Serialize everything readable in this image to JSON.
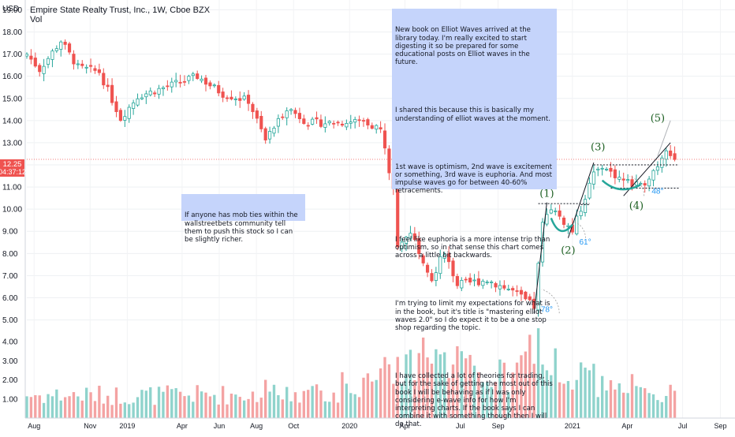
{
  "header": {
    "currency": "USD",
    "title": "Empire State Realty Trust, Inc., 1W, Cboe BZX",
    "volume_label": "Vol"
  },
  "price_tag": {
    "price": "12.25",
    "countdown": "04:37:12"
  },
  "notes": {
    "main": [
      "New book on Elliot Waves arrived at the library today. I'm really excited to start digesting it so be prepared for some educational posts on Elliot waves in the future.",
      "I shared this because this is basically my understanding of elliot waves at the moment.",
      "1st wave is optimism, 2nd wave is excitement or something, 3rd wave is euphoria. And most impulse waves go for between 40-60% retracements.",
      "I feel like euphoria is a more intense trip than optimism, so in that sense this chart comes across a little bit backwards.",
      "I'm trying to limit my expectations for what is in the book, but it's title is \"mastering elliot waves 2.0\" so I do expect it to be a one stop shop regarding the topic.",
      "I have collected a lot of theories for trading, but for the sake of getting the most out of this book I will be behaving as if I was only considering e-wave info for how I'm interpreting charts. If the book says I can combine it with something though then I will do that."
    ],
    "side": "If anyone has mob ties within the wallstreetbets community tell them to push this stock so I can be slightly richer."
  },
  "waves": [
    {
      "label": "(1)",
      "date": "2020-11-20",
      "price": 10.55
    },
    {
      "label": "(2)",
      "date": "2020-12-25",
      "price": 8.0
    },
    {
      "label": "(3)",
      "date": "2021-02-12",
      "price": 12.65
    },
    {
      "label": "(4)",
      "date": "2021-04-16",
      "price": 10.0
    },
    {
      "label": "(5)",
      "date": "2021-05-21",
      "price": 13.95
    }
  ],
  "angles": [
    {
      "label": "78°",
      "date": "2020-11-20",
      "price": 5.35
    },
    {
      "label": "61°",
      "date": "2021-01-22",
      "price": 8.4
    },
    {
      "label": "48°",
      "date": "2021-05-21",
      "price": 10.7
    }
  ],
  "colors": {
    "up": "#26a69a",
    "down": "#ef5350",
    "vol_up": "#8fd3cc",
    "vol_down": "#f4a3a3",
    "note_bg": "#c5d4fb",
    "wave": "#1b5e20",
    "angle": "#2196f3",
    "price_tag_bg": "#ef5350"
  },
  "chart_data": {
    "type": "candlestick",
    "title": "Empire State Realty Trust, Inc., 1W, Cboe BZX",
    "y_axis": {
      "unit": "USD",
      "range": [
        4.7,
        19.3
      ],
      "ticks": [
        "19.00",
        "18.00",
        "17.00",
        "16.00",
        "15.00",
        "14.00",
        "13.00",
        "12.00",
        "11.00",
        "10.00",
        "9.00",
        "8.00",
        "7.00",
        "6.00",
        "5.00"
      ]
    },
    "volume_axis": {
      "range": [
        0,
        5.2
      ],
      "ticks": [
        "4.00",
        "3.00",
        "2.00",
        "1.00"
      ]
    },
    "x_axis": {
      "range": [
        "2018-07-20",
        "2021-09-25"
      ],
      "ticks": [
        {
          "label": "Aug",
          "date": "2018-08-01"
        },
        {
          "label": "Nov",
          "date": "2018-11-01"
        },
        {
          "label": "2019",
          "date": "2019-01-01"
        },
        {
          "label": "Apr",
          "date": "2019-04-01"
        },
        {
          "label": "Jun",
          "date": "2019-06-01"
        },
        {
          "label": "Aug",
          "date": "2019-08-01"
        },
        {
          "label": "Oct",
          "date": "2019-10-01"
        },
        {
          "label": "2020",
          "date": "2020-01-01"
        },
        {
          "label": "Apr",
          "date": "2020-04-01"
        },
        {
          "label": "Jul",
          "date": "2020-07-01"
        },
        {
          "label": "Sep",
          "date": "2020-09-01"
        },
        {
          "label": "2021",
          "date": "2021-01-01"
        },
        {
          "label": "Apr",
          "date": "2021-04-01"
        },
        {
          "label": "Jul",
          "date": "2021-07-01"
        },
        {
          "label": "Sep",
          "date": "2021-09-01"
        }
      ]
    },
    "first_week": "2018-07-20",
    "close_path": [
      {
        "date": "2018-07-20",
        "close": 17.0
      },
      {
        "date": "2018-08-10",
        "close": 16.3
      },
      {
        "date": "2018-09-14",
        "close": 17.6
      },
      {
        "date": "2018-10-12",
        "close": 16.4
      },
      {
        "date": "2018-11-16",
        "close": 16.2
      },
      {
        "date": "2018-12-21",
        "close": 14.1
      },
      {
        "date": "2019-01-18",
        "close": 15.1
      },
      {
        "date": "2019-03-15",
        "close": 15.6
      },
      {
        "date": "2019-04-26",
        "close": 16.0
      },
      {
        "date": "2019-06-07",
        "close": 15.2
      },
      {
        "date": "2019-07-19",
        "close": 14.9
      },
      {
        "date": "2019-08-16",
        "close": 13.1
      },
      {
        "date": "2019-09-20",
        "close": 14.6
      },
      {
        "date": "2019-10-25",
        "close": 13.9
      },
      {
        "date": "2019-12-13",
        "close": 13.9
      },
      {
        "date": "2020-01-24",
        "close": 14.0
      },
      {
        "date": "2020-02-21",
        "close": 13.6
      },
      {
        "date": "2020-03-13",
        "close": 10.8
      },
      {
        "date": "2020-03-20",
        "close": 8.2
      },
      {
        "date": "2020-04-10",
        "close": 9.0
      },
      {
        "date": "2020-05-15",
        "close": 6.9
      },
      {
        "date": "2020-06-05",
        "close": 8.1
      },
      {
        "date": "2020-06-26",
        "close": 6.6
      },
      {
        "date": "2020-08-14",
        "close": 6.8
      },
      {
        "date": "2020-09-25",
        "close": 6.3
      },
      {
        "date": "2020-10-30",
        "close": 5.6
      },
      {
        "date": "2020-11-13",
        "close": 9.3
      },
      {
        "date": "2020-11-27",
        "close": 10.1
      },
      {
        "date": "2021-01-01",
        "close": 9.0
      },
      {
        "date": "2021-02-05",
        "close": 11.6
      },
      {
        "date": "2021-02-19",
        "close": 11.9
      },
      {
        "date": "2021-03-26",
        "close": 11.3
      },
      {
        "date": "2021-04-23",
        "close": 11.0
      },
      {
        "date": "2021-05-21",
        "close": 12.0
      },
      {
        "date": "2021-06-04",
        "close": 12.8
      },
      {
        "date": "2021-06-18",
        "close": 12.25
      }
    ],
    "volume_profile": [
      {
        "date": "2018-07-20",
        "volume": 1.2
      },
      {
        "date": "2019-03-01",
        "volume": 1.2
      },
      {
        "date": "2019-12-20",
        "volume": 1.3
      },
      {
        "date": "2020-03-06",
        "volume": 2.4
      },
      {
        "date": "2020-04-03",
        "volume": 3.0
      },
      {
        "date": "2020-07-03",
        "volume": 2.7
      },
      {
        "date": "2020-09-25",
        "volume": 2.0
      },
      {
        "date": "2020-11-06",
        "volume": 4.2
      },
      {
        "date": "2020-12-11",
        "volume": 2.3
      },
      {
        "date": "2021-02-05",
        "volume": 2.0
      },
      {
        "date": "2021-04-09",
        "volume": 1.3
      },
      {
        "date": "2021-06-18",
        "volume": 1.2
      }
    ],
    "volume_spikes": [
      {
        "date": "2020-11-06",
        "volume": 4.7
      },
      {
        "date": "2020-11-13",
        "volume": 2.8
      },
      {
        "date": "2020-11-20",
        "volume": 2.5
      },
      {
        "date": "2020-03-20",
        "volume": 3.2
      },
      {
        "date": "2020-05-22",
        "volume": 3.6
      },
      {
        "date": "2020-04-24",
        "volume": 3.4
      },
      {
        "date": "2020-06-19",
        "volume": 2.8
      },
      {
        "date": "2021-01-29",
        "volume": 2.5
      },
      {
        "date": "2021-02-19",
        "volume": 2.2
      },
      {
        "date": "2021-04-09",
        "volume": 2.3
      },
      {
        "date": "2019-08-16",
        "volume": 2.0
      },
      {
        "date": "2019-12-20",
        "volume": 2.4
      }
    ],
    "levels": [
      {
        "price": 10.25,
        "from": "2020-11-06",
        "to": "2021-01-29"
      },
      {
        "price": 12.0,
        "from": "2021-02-05",
        "to": "2021-06-25"
      },
      {
        "price": 10.95,
        "from": "2021-03-05",
        "to": "2021-06-25"
      },
      {
        "price": 10.2,
        "from": "2021-01-15",
        "to": "2021-01-29"
      }
    ],
    "trendlines": [
      {
        "from": [
          "2020-10-30",
          5.3
        ],
        "to": [
          "2020-11-20",
          10.3
        ]
      },
      {
        "from": [
          "2020-12-25",
          8.7
        ],
        "to": [
          "2021-02-05",
          12.1
        ]
      },
      {
        "from": [
          "2021-03-26",
          10.6
        ],
        "to": [
          "2021-06-11",
          13.0
        ]
      }
    ],
    "current_price": 12.25
  }
}
